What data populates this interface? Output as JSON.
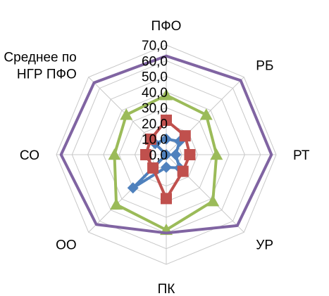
{
  "chart_data": {
    "type": "radar",
    "title": "",
    "categories": [
      "ПФО",
      "РБ",
      "РТ",
      "УР",
      "ПК",
      "ОО",
      "СО",
      "Среднее по НГР ПФО"
    ],
    "axis": {
      "ticks": [
        "0,0",
        "10,0",
        "20,0",
        "30,0",
        "40,0",
        "50,0",
        "60,0",
        "70,0"
      ],
      "range": [
        0,
        70
      ],
      "grid": true,
      "grid_shape": "octagon"
    },
    "legend": "none",
    "series": [
      {
        "color": "#4F81BD",
        "marker": "diamond",
        "values": [
          10,
          12,
          6,
          12,
          8,
          30,
          0,
          10
        ]
      },
      {
        "color": "#C0504D",
        "marker": "square",
        "values": [
          22,
          17,
          15,
          15,
          28,
          12,
          13,
          14
        ]
      },
      {
        "color": "#9BBB59",
        "marker": "triangle",
        "values": [
          38,
          36,
          32,
          42,
          48,
          45,
          33,
          36
        ]
      },
      {
        "color": "#8064A2",
        "marker": "none",
        "values": [
          63,
          67,
          67,
          64,
          50,
          63,
          67,
          65
        ]
      }
    ]
  }
}
